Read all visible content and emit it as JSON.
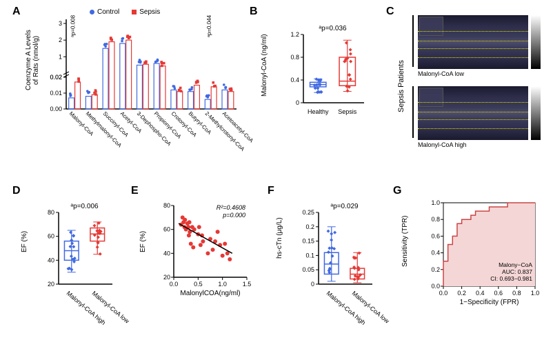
{
  "panelA": {
    "label": "A",
    "ylabel": "Coenzyme A Levels\nof Rats (nmol/g)",
    "legend": [
      "Control",
      "Sepsis"
    ],
    "legend_colors": [
      "#4169e1",
      "#e53935"
    ],
    "categories": [
      "Malonyl-CoA",
      "Methylmalonyl-CoA",
      "Succinyl-CoA",
      "Acetyl-CoA",
      "3-Dephospho-CoA",
      "Propionyl-CoA",
      "Crotonyl-CoA",
      "Butyryl-CoA",
      "2-Methylcrotonyl-CoA",
      "Acetoacetyl-CoA"
    ],
    "control_values": [
      0.007,
      0.008,
      1.5,
      1.8,
      0.5,
      0.6,
      0.012,
      0.011,
      0.006,
      0.012
    ],
    "sepsis_values": [
      0.017,
      0.009,
      1.9,
      2.0,
      0.55,
      0.45,
      0.011,
      0.015,
      0.014,
      0.011
    ],
    "pvalues": [
      {
        "idx": 0,
        "text": "ᵃp=0.008"
      },
      {
        "idx": 8,
        "text": "ᵃp=0.044"
      }
    ],
    "upper_ticks": [
      0.02,
      1,
      2,
      3
    ],
    "lower_ticks": [
      0.0,
      0.01,
      0.02
    ],
    "axis_break": 0.02
  },
  "panelB": {
    "label": "B",
    "ylabel": "Malonyl-CoA (ng/ml)",
    "xcats": [
      "Healthy",
      "Sepsis"
    ],
    "colors": [
      "#4169e1",
      "#e53935"
    ],
    "box_data": [
      {
        "q1": 0.28,
        "med": 0.32,
        "q3": 0.36,
        "whisk_lo": 0.18,
        "whisk_hi": 0.42
      },
      {
        "q1": 0.3,
        "med": 0.38,
        "q3": 0.8,
        "whisk_lo": 0.2,
        "whisk_hi": 1.1
      }
    ],
    "pvalue": "ᵃp=0.036",
    "ylim": [
      0.0,
      1.2
    ],
    "yticks": [
      0.0,
      0.4,
      0.8,
      1.2
    ]
  },
  "panelC": {
    "label": "C",
    "side_label": "Sepsis Patients",
    "sub_labels": [
      "Malonyl-CoA low",
      "Malonyl-CoA high"
    ]
  },
  "panelD": {
    "label": "D",
    "ylabel": "EF (%)",
    "xcats": [
      "Malonyl-CoA high",
      "Malonyl-CoA low"
    ],
    "colors": [
      "#4169e1",
      "#e53935"
    ],
    "box_data": [
      {
        "q1": 40,
        "med": 48,
        "q3": 56,
        "whisk_lo": 30,
        "whisk_hi": 65
      },
      {
        "q1": 56,
        "med": 62,
        "q3": 67,
        "whisk_lo": 45,
        "whisk_hi": 72
      }
    ],
    "pvalue": "ᵃp=0.006",
    "ylim": [
      20,
      80
    ],
    "yticks": [
      20,
      40,
      60,
      80
    ]
  },
  "panelE": {
    "label": "E",
    "ylabel": "EF (%)",
    "xlabel": "MalonylCOA(ng/ml)",
    "stats": "R²=0.4608\np=0.000",
    "xlim": [
      0.0,
      1.5
    ],
    "ylim": [
      20,
      80
    ],
    "xticks": [
      0.0,
      0.5,
      1.0,
      1.5
    ],
    "yticks": [
      20,
      40,
      60,
      80
    ],
    "points": [
      [
        0.15,
        64
      ],
      [
        0.18,
        70
      ],
      [
        0.2,
        66
      ],
      [
        0.22,
        62
      ],
      [
        0.23,
        68
      ],
      [
        0.25,
        60
      ],
      [
        0.28,
        65
      ],
      [
        0.3,
        62
      ],
      [
        0.31,
        55
      ],
      [
        0.32,
        66
      ],
      [
        0.33,
        58
      ],
      [
        0.35,
        48
      ],
      [
        0.38,
        62
      ],
      [
        0.4,
        45
      ],
      [
        0.42,
        60
      ],
      [
        0.5,
        56
      ],
      [
        0.52,
        62
      ],
      [
        0.55,
        47
      ],
      [
        0.58,
        55
      ],
      [
        0.6,
        50
      ],
      [
        0.7,
        40
      ],
      [
        0.75,
        52
      ],
      [
        0.8,
        43
      ],
      [
        0.85,
        50
      ],
      [
        0.9,
        58
      ],
      [
        0.95,
        47
      ],
      [
        1.0,
        38
      ],
      [
        1.05,
        48
      ],
      [
        1.1,
        40
      ],
      [
        1.15,
        35
      ]
    ],
    "line": {
      "x1": 0.1,
      "y1": 65,
      "x2": 1.2,
      "y2": 40
    },
    "color": "#e53935"
  },
  "panelF": {
    "label": "F",
    "ylabel": "hs-cTn (μg/L)",
    "xcats": [
      "Malonyl-CoA high",
      "Malonyl-CoA low"
    ],
    "colors": [
      "#4169e1",
      "#e53935"
    ],
    "box_data": [
      {
        "q1": 0.035,
        "med": 0.07,
        "q3": 0.11,
        "whisk_lo": 0.01,
        "whisk_hi": 0.2
      },
      {
        "q1": 0.018,
        "med": 0.035,
        "q3": 0.055,
        "whisk_lo": 0.005,
        "whisk_hi": 0.11
      }
    ],
    "pvalue": "ᵃp=0.029",
    "ylim": [
      0.0,
      0.25
    ],
    "yticks": [
      0.0,
      0.05,
      0.1,
      0.15,
      0.2,
      0.25
    ]
  },
  "panelG": {
    "label": "G",
    "ylabel": "Sensitivity (TPR)",
    "xlabel": "1−Specificity (FPR)",
    "stats": "Malony−CoA\nAUC: 0.837\nCI: 0.693−0.981",
    "xlim": [
      0.0,
      1.0
    ],
    "ylim": [
      0.0,
      1.0
    ],
    "ticks": [
      0.0,
      0.2,
      0.4,
      0.6,
      0.8,
      1.0
    ],
    "roc_points": [
      [
        0,
        0
      ],
      [
        0,
        0.3
      ],
      [
        0.05,
        0.3
      ],
      [
        0.05,
        0.5
      ],
      [
        0.1,
        0.5
      ],
      [
        0.1,
        0.6
      ],
      [
        0.15,
        0.6
      ],
      [
        0.15,
        0.75
      ],
      [
        0.2,
        0.75
      ],
      [
        0.2,
        0.8
      ],
      [
        0.3,
        0.8
      ],
      [
        0.3,
        0.85
      ],
      [
        0.35,
        0.85
      ],
      [
        0.35,
        0.9
      ],
      [
        0.5,
        0.9
      ],
      [
        0.5,
        0.95
      ],
      [
        0.7,
        0.95
      ],
      [
        0.7,
        1.0
      ],
      [
        1.0,
        1.0
      ]
    ],
    "roc_color": "#cc4444",
    "fill_color": "#f5d6d6"
  }
}
